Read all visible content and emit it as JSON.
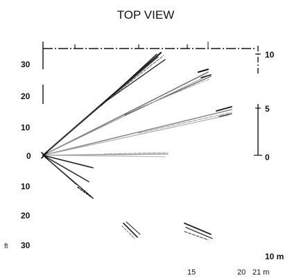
{
  "title": "TOP VIEW",
  "left_axis": {
    "unit": "ft",
    "labels": [
      "30",
      "20",
      "10",
      "0",
      "10",
      "20",
      "30"
    ]
  },
  "right_axis": {
    "unit": "m",
    "labels": [
      "10",
      "5",
      "0",
      "10 m"
    ]
  },
  "bottom_axis": {
    "labels": [
      "15",
      "20",
      "21 m"
    ]
  },
  "colors": {
    "ink": "#111111",
    "beam_dark": "#333333",
    "beam_light": "#9a9a9a"
  }
}
